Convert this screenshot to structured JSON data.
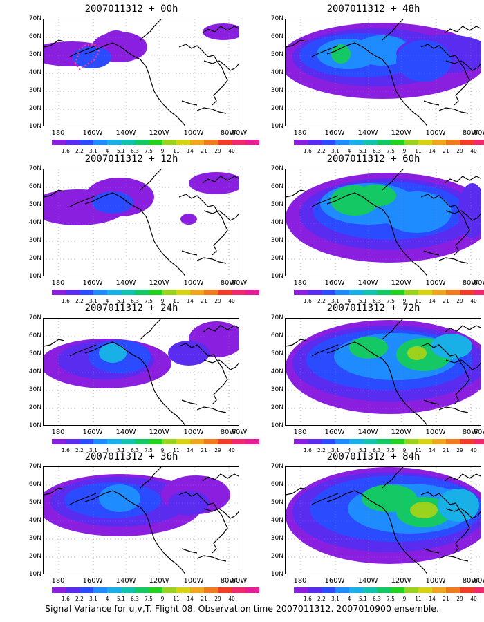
{
  "panels": [
    {
      "title": "2007011312 + 00h",
      "lead": 0
    },
    {
      "title": "2007011312 + 48h",
      "lead": 48
    },
    {
      "title": "2007011312 + 12h",
      "lead": 12
    },
    {
      "title": "2007011312 + 60h",
      "lead": 60
    },
    {
      "title": "2007011312 + 24h",
      "lead": 24
    },
    {
      "title": "2007011312 + 72h",
      "lead": 72
    },
    {
      "title": "2007011312 + 36h",
      "lead": 36
    },
    {
      "title": "2007011312 + 84h",
      "lead": 84
    }
  ],
  "lat_labels": [
    "70N",
    "60N",
    "50N",
    "40N",
    "30N",
    "20N",
    "10N"
  ],
  "lon_labels": [
    "180",
    "160W",
    "140W",
    "120W",
    "100W",
    "80W",
    "60W"
  ],
  "colorbar": {
    "colors": [
      "#8a1fe0",
      "#5a2cf0",
      "#2a4bff",
      "#1e8bff",
      "#18b0e6",
      "#12c4b0",
      "#14c864",
      "#22d21e",
      "#9ad21e",
      "#d8d214",
      "#f0a51e",
      "#f07a1e",
      "#f03c28",
      "#f0286e",
      "#e61e96"
    ],
    "labels": [
      "1.6",
      "2.2",
      "3.1",
      "4",
      "5.1",
      "6.3",
      "7.5",
      "9",
      "11",
      "14",
      "21",
      "29",
      "40"
    ]
  },
  "caption": "Signal Variance for u,v,T. Flight 08. Observation time 2007011312. 2007010900 ensemble."
}
